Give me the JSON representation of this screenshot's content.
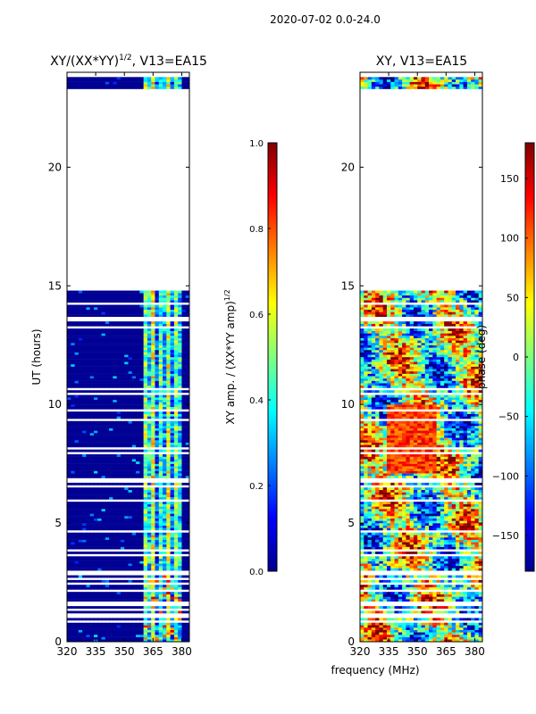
{
  "suptitle": "2020-07-02 0.0-24.0",
  "xlabel": "frequency (MHz)",
  "chart_data": [
    {
      "type": "heatmap",
      "title_main": "XY/(XX*YY)",
      "title_sup": "1/2",
      "title_tail": ", V13=EA15",
      "xlabel": "frequency (MHz)",
      "ylabel": "UT (hours)",
      "xlim": [
        320,
        384
      ],
      "ylim": [
        0,
        24
      ],
      "xticks": [
        320,
        335,
        350,
        365,
        380
      ],
      "yticks": [
        0,
        5,
        10,
        15,
        20
      ],
      "colorbar": {
        "label_main": "XY amp. / (XX*YY amp)",
        "label_sup": "1/2",
        "range": [
          0.0,
          1.0
        ],
        "ticks": [
          "0.0",
          "0.2",
          "0.4",
          "0.6",
          "0.8",
          "1.0"
        ],
        "tick_values": [
          0.0,
          0.2,
          0.4,
          0.6,
          0.8,
          1.0
        ],
        "colormap": "jet"
      },
      "blank_hours": [
        [
          22.7,
          23.2
        ],
        [
          20.75,
          22.7
        ],
        [
          18.3,
          20.75
        ],
        [
          17.0,
          18.1
        ],
        [
          14.8,
          17.0
        ]
      ],
      "bright_band_MHz": [
        361,
        380
      ],
      "typical_value_outside_band": 0.0,
      "typical_value_in_band": 0.45
    },
    {
      "type": "heatmap",
      "title": "XY, V13=EA15",
      "xlabel": "frequency (MHz)",
      "ylabel": "",
      "xlim": [
        320,
        384
      ],
      "ylim": [
        0,
        24
      ],
      "xticks": [
        320,
        335,
        350,
        365,
        380
      ],
      "yticks": [
        0,
        5,
        10,
        15,
        20
      ],
      "colorbar": {
        "label": "phase (deg)",
        "range": [
          -180,
          180
        ],
        "ticks": [
          "−150",
          "−100",
          "−50",
          "0",
          "50",
          "100",
          "150"
        ],
        "tick_values": [
          -150,
          -100,
          -50,
          0,
          50,
          100,
          150
        ],
        "colormap": "jet"
      },
      "blank_hours": [
        [
          22.7,
          23.2
        ],
        [
          20.75,
          22.7
        ],
        [
          18.3,
          20.75
        ],
        [
          17.0,
          18.1
        ],
        [
          14.8,
          17.0
        ]
      ]
    }
  ],
  "colors": {
    "jet_low": "#00008f",
    "jet_high": "#800000",
    "axis": "#000000"
  }
}
